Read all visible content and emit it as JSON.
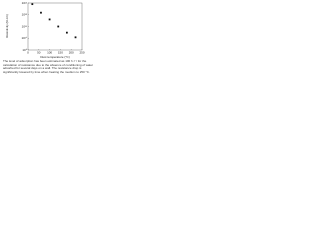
{
  "chart_data": {
    "type": "scatter",
    "xlabel": "Dust temperature (°C)",
    "ylabel": "Resistivity (Ω·cm)",
    "x": [
      20,
      60,
      100,
      140,
      180,
      220
    ],
    "values": [
      8000000000000.0,
      1500000000000.0,
      400000000000.0,
      100000000000.0,
      30000000000.0,
      12000000000.0
    ],
    "color": "#111111",
    "log_y": true,
    "xlim": [
      0,
      250
    ],
    "xticks": [
      0,
      50,
      100,
      150,
      200,
      250
    ],
    "ylim": [
      1000000000.0,
      10000000000000.0
    ],
    "yticks": [
      {
        "value": 1000000000.0,
        "label": "10⁹"
      },
      {
        "value": 10000000000.0,
        "label": "10¹⁰"
      },
      {
        "value": 100000000000.0,
        "label": "10¹¹"
      },
      {
        "value": 1000000000000.0,
        "label": "10¹²"
      },
      {
        "value": 10000000000000.0,
        "label": "10¹³"
      }
    ],
    "caption": "The level of adsorption has been estimated as 100 h·l⁻¹ for the calculation of resistance due to the absence of conditioning of water adsorbed for several days on a wall. The resistance drop is significantly lowered by time when heating the medium to 250 °C."
  }
}
